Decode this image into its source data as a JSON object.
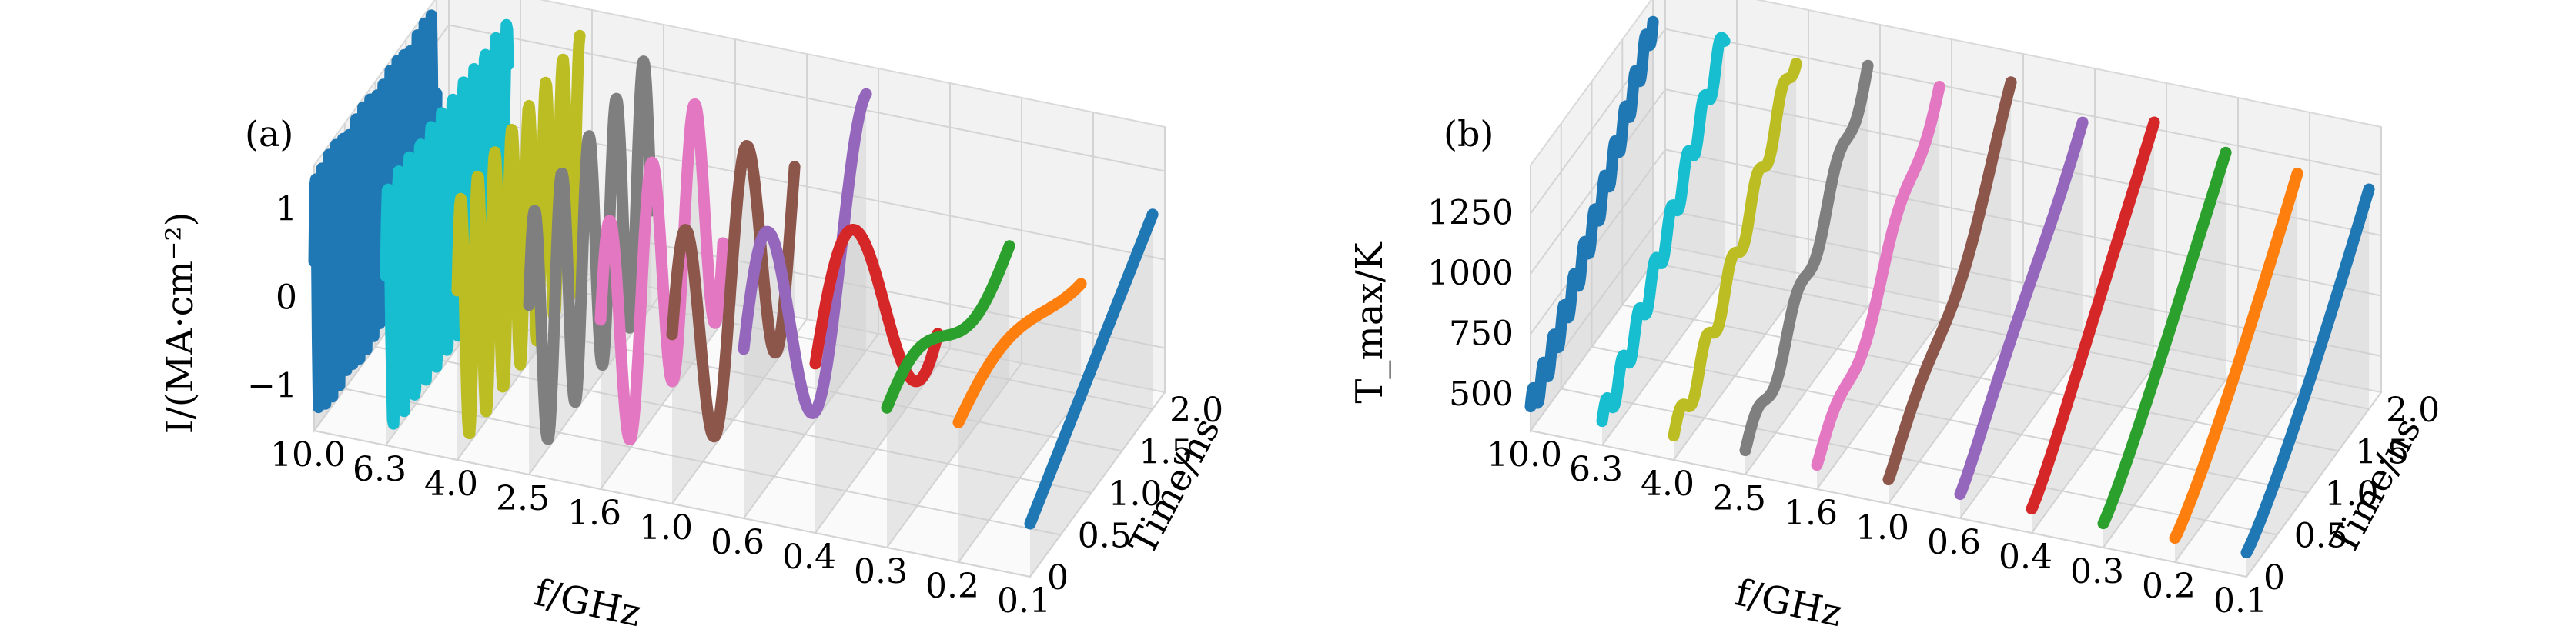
{
  "chart_data": [
    {
      "panel": "(a)",
      "type": "line3d",
      "xlabel": "f/GHz",
      "ylabel": "Time/ns",
      "zlabel": "I/(MA·cm⁻²)",
      "x_categories": [
        "10.0",
        "6.3",
        "4.0",
        "2.5",
        "1.6",
        "1.0",
        "0.6",
        "0.4",
        "0.3",
        "0.2",
        "0.1"
      ],
      "y_ticks": [
        "0",
        "0.5",
        "1.0",
        "1.5",
        "2.0"
      ],
      "z_ticks": [
        "−1",
        "0",
        "1"
      ],
      "ylim": [
        0,
        2.2
      ],
      "zlim": [
        -1.5,
        1.5
      ],
      "series": [
        {
          "frequency_ghz": 10.0,
          "color": "#1f77b4",
          "amplitude_max": 1.4
        },
        {
          "frequency_ghz": 6.3,
          "color": "#17becf",
          "amplitude_max": 1.4
        },
        {
          "frequency_ghz": 4.0,
          "color": "#bcbd22",
          "amplitude_max": 1.4
        },
        {
          "frequency_ghz": 2.5,
          "color": "#7f7f7f",
          "amplitude_max": 1.4
        },
        {
          "frequency_ghz": 1.6,
          "color": "#e377c2",
          "amplitude_max": 1.4
        },
        {
          "frequency_ghz": 1.0,
          "color": "#8c564b",
          "amplitude_max": 1.4
        },
        {
          "frequency_ghz": 0.6,
          "color": "#9467bd",
          "amplitude_max": 1.4
        },
        {
          "frequency_ghz": 0.4,
          "color": "#d62728",
          "amplitude_max": 1.4
        },
        {
          "frequency_ghz": 0.3,
          "color": "#2ca02c",
          "amplitude_max": 0.3
        },
        {
          "frequency_ghz": 0.2,
          "color": "#ff7f0e",
          "amplitude_max": 0.3
        },
        {
          "frequency_ghz": 0.1,
          "color": "#1f77b4",
          "amplitude_max": 0.3
        }
      ]
    },
    {
      "panel": "(b)",
      "type": "line3d",
      "xlabel": "f/GHz",
      "ylabel": "Time/ns",
      "zlabel": "T_max/K",
      "x_categories": [
        "10.0",
        "6.3",
        "4.0",
        "2.5",
        "1.6",
        "1.0",
        "0.6",
        "0.4",
        "0.3",
        "0.2",
        "0.1"
      ],
      "y_ticks": [
        "0",
        "0.5",
        "1.0",
        "1.5",
        "2.0"
      ],
      "z_ticks": [
        "500",
        "750",
        "1000",
        "1250"
      ],
      "ylim": [
        0,
        2.2
      ],
      "zlim": [
        350,
        1450
      ],
      "series": [
        {
          "frequency_ghz": 10.0,
          "color": "#1f77b4",
          "t_start_k": 450,
          "t_end_k": 1350
        },
        {
          "frequency_ghz": 6.3,
          "color": "#17becf",
          "t_start_k": 450,
          "t_end_k": 1350
        },
        {
          "frequency_ghz": 4.0,
          "color": "#bcbd22",
          "t_start_k": 450,
          "t_end_k": 1350
        },
        {
          "frequency_ghz": 2.5,
          "color": "#7f7f7f",
          "t_start_k": 450,
          "t_end_k": 1350
        },
        {
          "frequency_ghz": 1.6,
          "color": "#e377c2",
          "t_start_k": 450,
          "t_end_k": 1350
        },
        {
          "frequency_ghz": 1.0,
          "color": "#8c564b",
          "t_start_k": 450,
          "t_end_k": 1350
        },
        {
          "frequency_ghz": 0.6,
          "color": "#9467bd",
          "t_start_k": 450,
          "t_end_k": 1350
        },
        {
          "frequency_ghz": 0.4,
          "color": "#d62728",
          "t_start_k": 450,
          "t_end_k": 1350
        },
        {
          "frequency_ghz": 0.3,
          "color": "#2ca02c",
          "t_start_k": 450,
          "t_end_k": 1250
        },
        {
          "frequency_ghz": 0.2,
          "color": "#ff7f0e",
          "t_start_k": 450,
          "t_end_k": 1250
        },
        {
          "frequency_ghz": 0.1,
          "color": "#1f77b4",
          "t_start_k": 450,
          "t_end_k": 1250
        }
      ]
    }
  ]
}
